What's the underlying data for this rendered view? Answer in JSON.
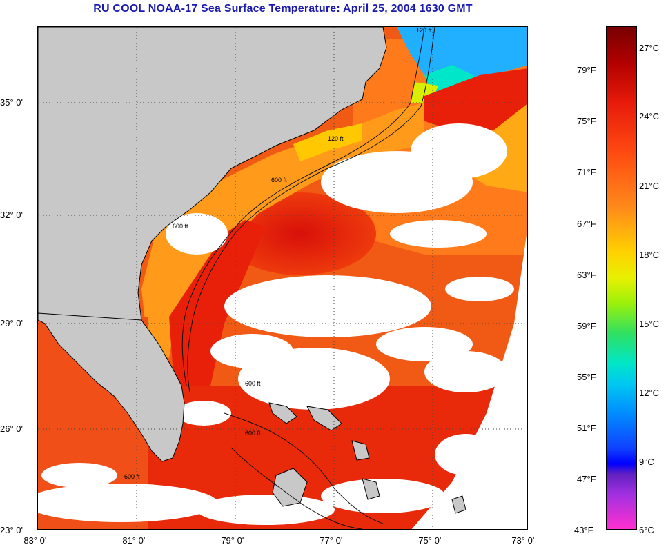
{
  "title": "RU COOL  NOAA-17  Sea Surface Temperature:  April 25, 2004 1630 GMT",
  "map": {
    "lat_labels": [
      "35° 0'",
      "32° 0'",
      "29° 0'",
      "26° 0'",
      "23° 0'"
    ],
    "lon_labels": [
      "-83° 0'",
      "-81° 0'",
      "-79° 0'",
      "-77° 0'",
      "-75° 0'",
      "-73° 0'"
    ],
    "contour_labels": [
      "120 ft",
      "600 ft",
      "600 ft",
      "120 ft",
      "600 ft",
      "600 ft",
      "600 ft"
    ],
    "colors": {
      "land": "#c8c8c8",
      "cloud": "#ffffff",
      "water_hot": "#e8200a",
      "water_warm": "#ff7a1a",
      "water_cool": "#ffc800",
      "water_cold": "#20b0ff"
    }
  },
  "colorbar": {
    "fahrenheit_labels": [
      "79°F",
      "75°F",
      "71°F",
      "67°F",
      "63°F",
      "59°F",
      "55°F",
      "51°F",
      "47°F",
      "43°F"
    ],
    "celsius_labels": [
      "27°C",
      "24°C",
      "21°C",
      "18°C",
      "15°C",
      "12°C",
      "9°C",
      "6°C"
    ],
    "range_f": [
      43,
      81
    ],
    "range_c": [
      6,
      27
    ]
  }
}
